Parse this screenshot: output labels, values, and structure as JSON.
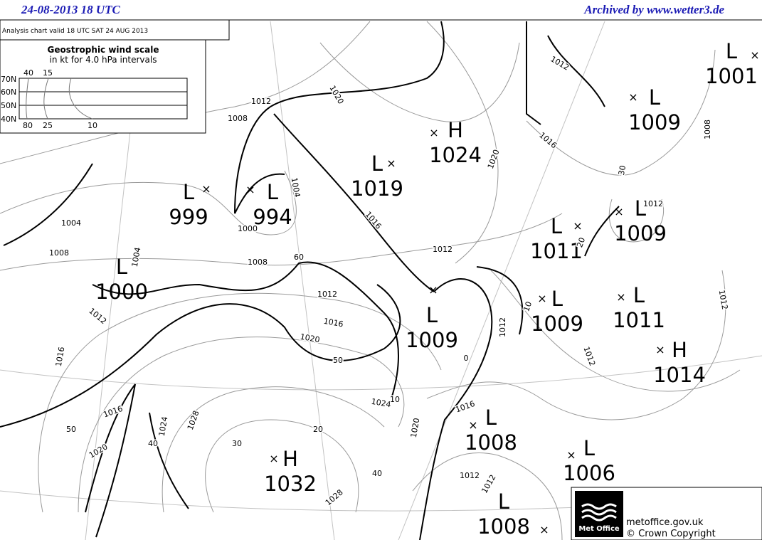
{
  "header": {
    "date": "24-08-2013  18 UTC",
    "archive": "Archived by www.wetter3.de"
  },
  "analysis_label": "Analysis chart  valid 18 UTC SAT 24  AUG 2013",
  "wind_scale": {
    "title": "Geostrophic wind scale",
    "subtitle": "in kt for 4.0 hPa intervals",
    "top_labels": [
      "40",
      "15"
    ],
    "bottom_labels": [
      "80",
      "25",
      "10"
    ],
    "latitudes": [
      "70N",
      "60N",
      "50N",
      "40N"
    ]
  },
  "pressure_centers": [
    {
      "type": "L",
      "value": "1001"
    },
    {
      "type": "L",
      "value": "1009"
    },
    {
      "type": "H",
      "value": "1024"
    },
    {
      "type": "L",
      "value": "1019"
    },
    {
      "type": "L",
      "value": "999"
    },
    {
      "type": "L",
      "value": "994"
    },
    {
      "type": "L",
      "value": "1011"
    },
    {
      "type": "L",
      "value": "1009"
    },
    {
      "type": "L",
      "value": "1000"
    },
    {
      "type": "L",
      "value": "1009"
    },
    {
      "type": "L",
      "value": "1011"
    },
    {
      "type": "L",
      "value": "1009"
    },
    {
      "type": "H",
      "value": "1014"
    },
    {
      "type": "L",
      "value": "1008"
    },
    {
      "type": "H",
      "value": "1032"
    },
    {
      "type": "L",
      "value": "1006"
    },
    {
      "type": "L",
      "value": "1008"
    }
  ],
  "contour_labels": [
    "1012",
    "1016",
    "1020",
    "1008",
    "1012",
    "1012",
    "1012",
    "1016",
    "1020",
    "1008",
    "1004",
    "1008",
    "1004",
    "1012",
    "1016",
    "1024",
    "1016",
    "1020",
    "1012",
    "1028",
    "1024",
    "1020",
    "1016",
    "1028",
    "1012",
    "1012",
    "1012",
    "1008",
    "1012",
    "1000",
    "1004",
    "1016",
    "1020",
    "1012",
    "60",
    "50",
    "30",
    "40",
    "20",
    "10",
    "40",
    "50",
    "30",
    "10",
    "20",
    "0"
  ],
  "credits": {
    "logo": "Met Office",
    "site": "metoffice.gov.uk",
    "copyright": "© Crown Copyright"
  }
}
